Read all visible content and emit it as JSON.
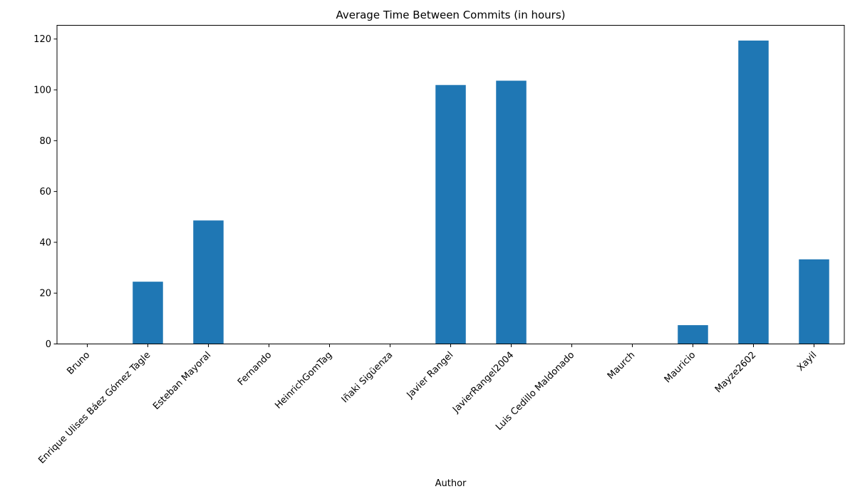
{
  "chart_data": {
    "type": "bar",
    "title": "Average Time Between Commits (in hours)",
    "xlabel": "Author",
    "ylabel": "",
    "categories": [
      "Bruno",
      "Enrique Ulises Báez Gómez Tagle",
      "Esteban Mayoral",
      "Fernando",
      "HeinrichGomTag",
      "Iñaki Sigüenza",
      "Javier Rangel",
      "JavierRangel2004",
      "Luis Cedillo Maldonado",
      "Maurch",
      "Mauricio",
      "Mayze2602",
      "Xayil"
    ],
    "values": [
      0,
      24.5,
      48.6,
      0,
      0,
      0,
      101.9,
      103.6,
      0,
      0,
      7.4,
      119.4,
      33.3
    ],
    "ylim": [
      0,
      125.4
    ],
    "yticks": [
      0,
      20,
      40,
      60,
      80,
      100,
      120
    ],
    "grid": false,
    "legend": "none",
    "bar_color": "#1f77b4"
  }
}
